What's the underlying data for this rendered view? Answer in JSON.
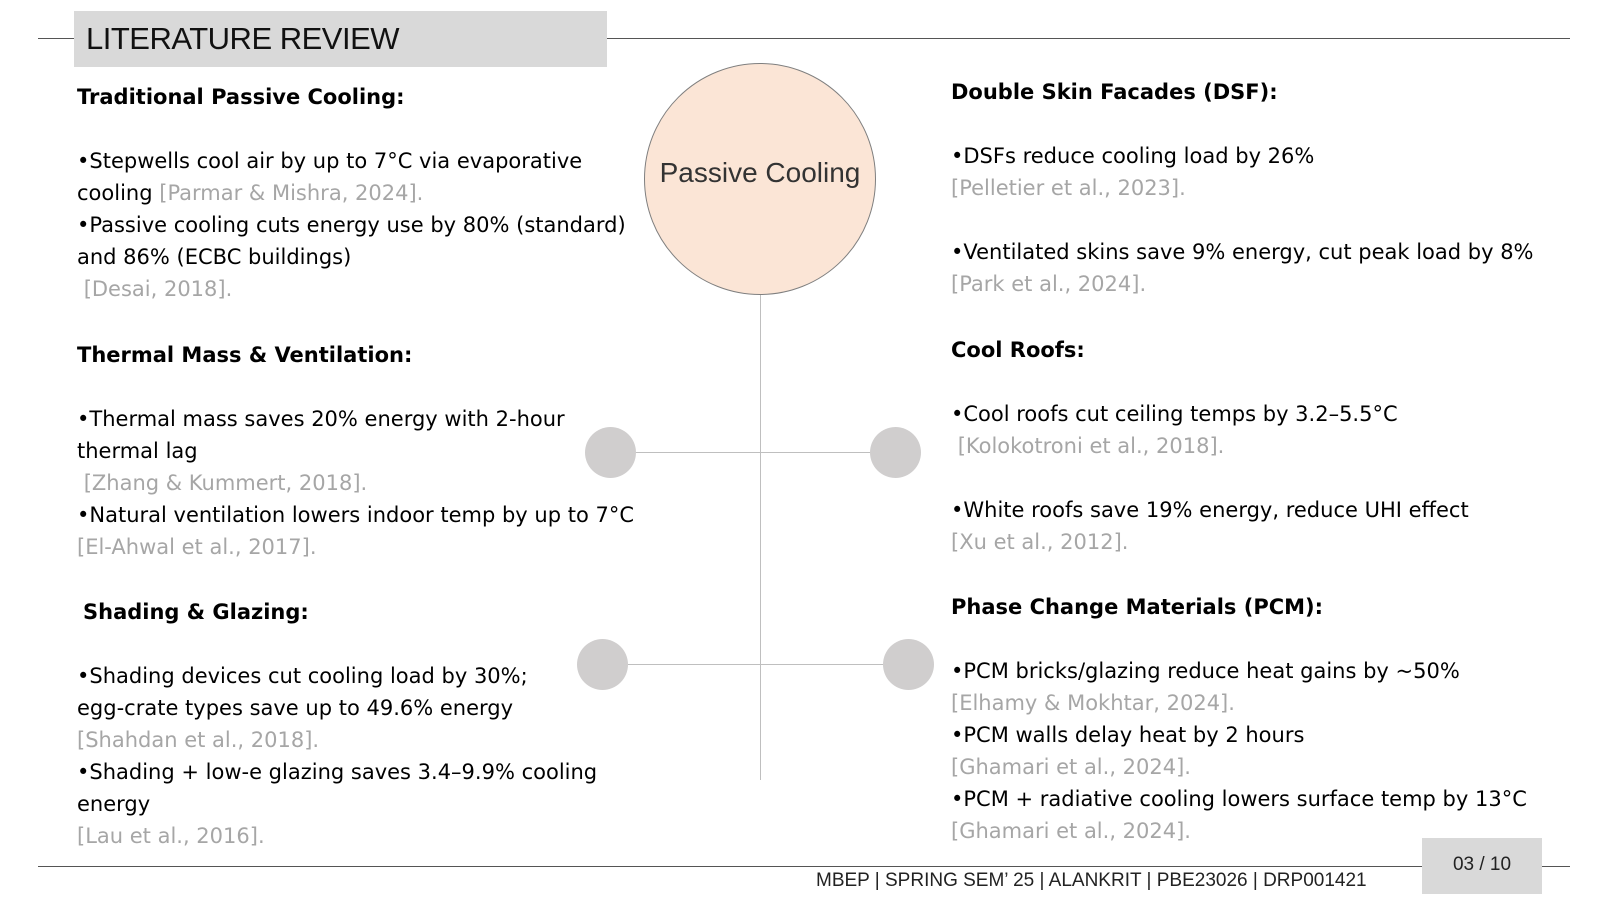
{
  "slide": {
    "title": "LITERATURE REVIEW",
    "center_label": "Passive Cooling",
    "footer": "MBEP | SPRING SEM’ 25 | ALANKRIT | PBE23026 | DRP001421",
    "page": "03 / 10"
  },
  "left": {
    "s1": {
      "heading": "Traditional Passive Cooling:",
      "l1": "•Stepwells cool air by up to 7°C via evaporative",
      "l2": "cooling",
      "l2_cite": "[Parmar & Mishra, 2024].",
      "l3": "•Passive cooling cuts energy use by 80% (standard)",
      "l4": "and 86% (ECBC buildings)",
      "l5_cite": "[Desai, 2018]."
    },
    "s2": {
      "heading": "Thermal Mass & Ventilation:",
      "l1": "•Thermal mass saves 20% energy with 2-hour",
      "l2": "thermal lag",
      "l3_cite": "[Zhang & Kummert, 2018].",
      "l4": "•Natural ventilation lowers indoor temp by up to 7°C",
      "l5_cite": "[El-Ahwal et al., 2017]."
    },
    "s3": {
      "heading": "Shading & Glazing:",
      "l1": "•Shading devices cut cooling load by 30%;",
      "l2": "egg-crate types save up to 49.6% energy",
      "l3_cite": "[Shahdan et al., 2018].",
      "l4": "•Shading + low-e glazing saves 3.4–9.9% cooling",
      "l5": "energy",
      "l6_cite": "[Lau et al., 2016]."
    }
  },
  "right": {
    "s1": {
      "heading": "Double Skin Facades (DSF):",
      "l1": "•DSFs reduce cooling load by 26%",
      "l2_cite": "[Pelletier et al., 2023].",
      "l3": "•Ventilated skins save 9% energy, cut peak load by 8%",
      "l4_cite": "[Park et al., 2024]."
    },
    "s2": {
      "heading": "Cool Roofs:",
      "l1": "•Cool roofs cut ceiling temps by 3.2–5.5°C",
      "l2_cite": "[Kolokotroni et al., 2018].",
      "l3": "•White roofs save 19% energy, reduce UHI effect",
      "l4_cite": "[Xu et al., 2012]."
    },
    "s3": {
      "heading": "Phase Change Materials (PCM):",
      "l1": "•PCM bricks/glazing reduce heat gains by ~50%",
      "l2_cite": "[Elhamy & Mokhtar, 2024].",
      "l3": "•PCM walls delay heat by 2 hours",
      "l4_cite": "[Ghamari et al., 2024].",
      "l5": "•PCM + radiative cooling lowers surface temp by 13°C",
      "l6_cite": "[Ghamari et al., 2024]."
    }
  }
}
